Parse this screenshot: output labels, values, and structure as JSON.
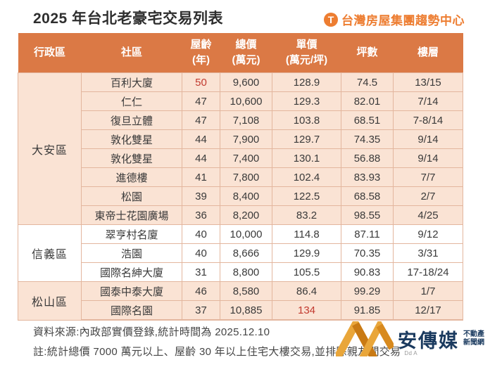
{
  "title": "2025 年台北老豪宅交易列表",
  "brand": {
    "name": "台灣房屋集團趨勢中心",
    "icon_letter": "T",
    "color": "#ED7D31"
  },
  "table": {
    "headers": [
      "行政區",
      "社區",
      "屋齡\n(年)",
      "總價\n(萬元)",
      "單價\n(萬元/坪)",
      "坪數",
      "樓層"
    ]
  },
  "chart_data": {
    "type": "table",
    "title": "2025 年台北老豪宅交易列表",
    "columns": [
      "行政區",
      "社區",
      "屋齡(年)",
      "總價(萬元)",
      "單價(萬元/坪)",
      "坪數",
      "樓層"
    ],
    "column_keys": [
      "community",
      "age",
      "total_price",
      "unit_price",
      "area",
      "floor"
    ],
    "sections": [
      {
        "district": "大安區",
        "shaded": true,
        "rows": [
          {
            "community": "百利大廈",
            "age": "50",
            "total_price": "9,600",
            "unit_price": "128.9",
            "area": "74.5",
            "floor": "13/15",
            "red": [
              "age"
            ]
          },
          {
            "community": "仁仁",
            "age": "47",
            "total_price": "10,600",
            "unit_price": "129.3",
            "area": "82.01",
            "floor": "7/14"
          },
          {
            "community": "復旦立體",
            "age": "47",
            "total_price": "7,108",
            "unit_price": "103.8",
            "area": "68.51",
            "floor": "7-8/14"
          },
          {
            "community": "敦化雙星",
            "age": "44",
            "total_price": "7,900",
            "unit_price": "129.7",
            "area": "74.35",
            "floor": "9/14"
          },
          {
            "community": "敦化雙星",
            "age": "44",
            "total_price": "7,400",
            "unit_price": "130.1",
            "area": "56.88",
            "floor": "9/14"
          },
          {
            "community": "進德樓",
            "age": "41",
            "total_price": "7,800",
            "unit_price": "102.4",
            "area": "83.93",
            "floor": "7/7"
          },
          {
            "community": "松園",
            "age": "39",
            "total_price": "8,400",
            "unit_price": "122.5",
            "area": "68.58",
            "floor": "2/7"
          },
          {
            "community": "東帝士花園廣場",
            "age": "36",
            "total_price": "8,200",
            "unit_price": "83.2",
            "area": "98.55",
            "floor": "4/25"
          }
        ]
      },
      {
        "district": "信義區",
        "shaded": false,
        "rows": [
          {
            "community": "翠亨村名廈",
            "age": "40",
            "total_price": "10,000",
            "unit_price": "114.8",
            "area": "87.11",
            "floor": "9/12"
          },
          {
            "community": "浩園",
            "age": "40",
            "total_price": "8,666",
            "unit_price": "129.9",
            "area": "70.35",
            "floor": "3/31"
          },
          {
            "community": "國際名紳大廈",
            "age": "31",
            "total_price": "8,800",
            "unit_price": "105.5",
            "area": "90.83",
            "floor": "17-18/24"
          }
        ]
      },
      {
        "district": "松山區",
        "shaded": true,
        "rows": [
          {
            "community": "國泰中泰大廈",
            "age": "46",
            "total_price": "8,580",
            "unit_price": "86.4",
            "area": "99.29",
            "floor": "1/7"
          },
          {
            "community": "國際名園",
            "age": "37",
            "total_price": "10,885",
            "unit_price": "134",
            "area": "91.85",
            "floor": "12/17",
            "red": [
              "unit_price"
            ]
          }
        ]
      }
    ]
  },
  "footer": {
    "source": "資料來源:內政部實價登錄,統計時間為 2025.12.10",
    "note": "註:統計總價 7000 萬元以上、屋齡 30 年以上住宅大樓交易,並排除親友間交易",
    "watermark_code": "Dd A"
  },
  "watermark": {
    "name": "安傳媒",
    "sub1": "不動產",
    "sub2": "新聞網",
    "gold": "#E9A63A",
    "gold_dark": "#C97A14",
    "navy": "#1A3A5F"
  },
  "colors": {
    "header_bg": "#DB7945",
    "shaded_row": "#FAE3D4",
    "plain_row": "#FFFFFF",
    "border": "#E3B69E",
    "highlight_red": "#C23A2F",
    "body_text": "#3A3A3A",
    "brand_orange": "#ED7D31"
  }
}
